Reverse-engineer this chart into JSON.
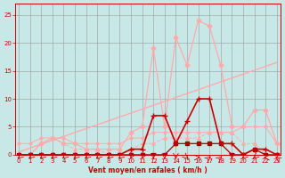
{
  "bg_color": "#c8e8e8",
  "grid_color": "#999999",
  "xlabel": "Vent moyen/en rafales ( km/h )",
  "x_ticks": [
    0,
    1,
    2,
    3,
    4,
    5,
    6,
    7,
    8,
    9,
    10,
    11,
    12,
    13,
    14,
    15,
    16,
    17,
    18,
    19,
    20,
    21,
    22,
    23
  ],
  "yticks": [
    0,
    5,
    10,
    15,
    20,
    25
  ],
  "ylim": [
    0,
    27
  ],
  "xlim": [
    -0.3,
    23.3
  ],
  "line_gust_peak": {
    "y": [
      0,
      0,
      2,
      3,
      2,
      2,
      1,
      1,
      1,
      1,
      4,
      5,
      19,
      5,
      21,
      16,
      24,
      23,
      16,
      5,
      5,
      8,
      8,
      2
    ],
    "color": "#ffaaaa",
    "marker": "D",
    "markersize": 2.5,
    "linewidth": 0.9
  },
  "line_trend": {
    "x": [
      0,
      23
    ],
    "y": [
      0.5,
      16.5
    ],
    "color": "#ffaaaa",
    "linewidth": 1.0
  },
  "line_gust_flat": {
    "y": [
      2,
      2,
      3,
      3,
      3,
      2,
      2,
      2,
      2,
      2,
      3,
      3,
      4,
      4,
      4,
      4,
      4,
      4,
      4,
      4,
      5,
      5,
      5,
      2
    ],
    "color": "#ffaaaa",
    "marker": "o",
    "markersize": 2.0,
    "linewidth": 0.7
  },
  "line_mean_dotted": {
    "y": [
      0,
      0,
      2,
      3,
      2,
      1,
      1,
      1,
      0,
      0,
      1,
      2,
      2,
      3,
      3,
      3,
      3,
      4,
      4,
      4,
      2,
      2,
      0,
      0
    ],
    "color": "#ffaaaa",
    "marker": "^",
    "markersize": 2.5,
    "linewidth": 0.7,
    "linestyle": "dashed"
  },
  "line_mean_dark": {
    "y": [
      0,
      0,
      0,
      0,
      0,
      0,
      0,
      0,
      0,
      0,
      1,
      1,
      7,
      7,
      2,
      6,
      10,
      10,
      2,
      2,
      0,
      1,
      1,
      0
    ],
    "color": "#cc0000",
    "marker": "+",
    "markersize": 4,
    "linewidth": 1.2
  },
  "line_mean_dark2": {
    "y": [
      0,
      0,
      0,
      0,
      0,
      0,
      0,
      0,
      0,
      0,
      0,
      0,
      0,
      0,
      2,
      2,
      2,
      2,
      2,
      0,
      0,
      1,
      0,
      0
    ],
    "color": "#aa0000",
    "marker": "s",
    "markersize": 2.5,
    "linewidth": 0.9
  },
  "wind_dirs": [
    225,
    225,
    225,
    225,
    225,
    225,
    225,
    225,
    225,
    225,
    200,
    200,
    180,
    180,
    180,
    135,
    90,
    45,
    45,
    180,
    225,
    225,
    270,
    315
  ],
  "arrow_color": "#cc0000"
}
